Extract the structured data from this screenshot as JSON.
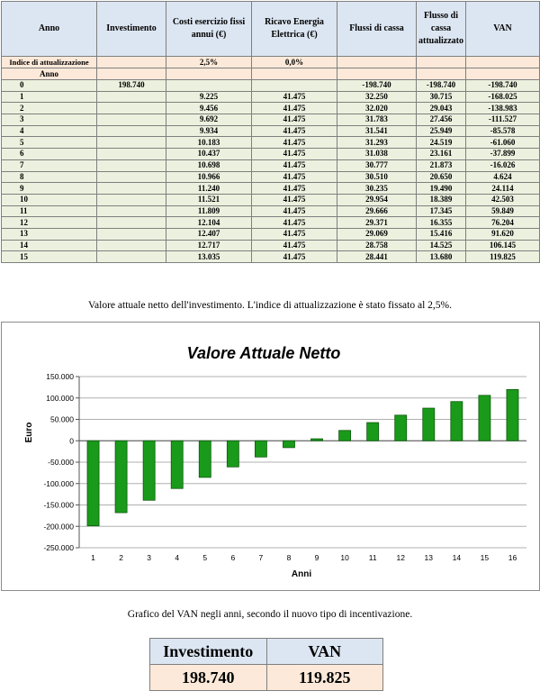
{
  "table": {
    "headers": [
      "Anno",
      "Investimento",
      "Costi esercizio fissi annui (€)",
      "Ricavo Energia Elettrica (€)",
      "Flussi di cassa",
      "Flusso di cassa attualizzato",
      "VAN"
    ],
    "index_row": {
      "label": "Indice di attualizzazione",
      "costi": "2,5%",
      "ricavo": "0,0%"
    },
    "anno_label": "Anno",
    "rows": [
      [
        "0",
        "198.740",
        "",
        "",
        "-198.740",
        "-198.740",
        "-198.740"
      ],
      [
        "1",
        "",
        "9.225",
        "41.475",
        "32.250",
        "30.715",
        "-168.025"
      ],
      [
        "2",
        "",
        "9.456",
        "41.475",
        "32.020",
        "29.043",
        "-138.983"
      ],
      [
        "3",
        "",
        "9.692",
        "41.475",
        "31.783",
        "27.456",
        "-111.527"
      ],
      [
        "4",
        "",
        "9.934",
        "41.475",
        "31.541",
        "25.949",
        "-85.578"
      ],
      [
        "5",
        "",
        "10.183",
        "41.475",
        "31.293",
        "24.519",
        "-61.060"
      ],
      [
        "6",
        "",
        "10.437",
        "41.475",
        "31.038",
        "23.161",
        "-37.899"
      ],
      [
        "7",
        "",
        "10.698",
        "41.475",
        "30.777",
        "21.873",
        "-16.026"
      ],
      [
        "8",
        "",
        "10.966",
        "41.475",
        "30.510",
        "20.650",
        "4.624"
      ],
      [
        "9",
        "",
        "11.240",
        "41.475",
        "30.235",
        "19.490",
        "24.114"
      ],
      [
        "10",
        "",
        "11.521",
        "41.475",
        "29.954",
        "18.389",
        "42.503"
      ],
      [
        "11",
        "",
        "11.809",
        "41.475",
        "29.666",
        "17.345",
        "59.849"
      ],
      [
        "12",
        "",
        "12.104",
        "41.475",
        "29.371",
        "16.355",
        "76.204"
      ],
      [
        "13",
        "",
        "12.407",
        "41.475",
        "29.069",
        "15.416",
        "91.620"
      ],
      [
        "14",
        "",
        "12.717",
        "41.475",
        "28.758",
        "14.525",
        "106.145"
      ],
      [
        "15",
        "",
        "13.035",
        "41.475",
        "28.441",
        "13.680",
        "119.825"
      ]
    ]
  },
  "caption1": "Valore attuale netto dell'investimento. L'indice di attualizzazione è stato fissato al 2,5%.",
  "caption2": "Grafico del VAN negli anni, secondo il nuovo tipo di incentivazione.",
  "chart_data": {
    "type": "bar",
    "title": "Valore Attuale Netto",
    "xlabel": "Anni",
    "ylabel": "Euro",
    "categories": [
      "1",
      "2",
      "3",
      "4",
      "5",
      "6",
      "7",
      "8",
      "9",
      "10",
      "11",
      "12",
      "13",
      "14",
      "15",
      "16"
    ],
    "values": [
      -198740,
      -168025,
      -138983,
      -111527,
      -85578,
      -61060,
      -37899,
      -16026,
      4624,
      24114,
      42503,
      59849,
      76204,
      91620,
      106145,
      119825
    ],
    "ylim": [
      -250000,
      150000
    ],
    "yticks": [
      "150.000",
      "100.000",
      "50.000",
      "0",
      "-50.000",
      "-100.000",
      "-150.000",
      "-200.000",
      "-250.000"
    ],
    "ytick_values": [
      150000,
      100000,
      50000,
      0,
      -50000,
      -100000,
      -150000,
      -200000,
      -250000
    ],
    "grid": true,
    "bar_color": "#1a9a1a"
  },
  "summary": {
    "headers": [
      "Investimento",
      "VAN"
    ],
    "values": [
      "198.740",
      "119.825"
    ]
  }
}
